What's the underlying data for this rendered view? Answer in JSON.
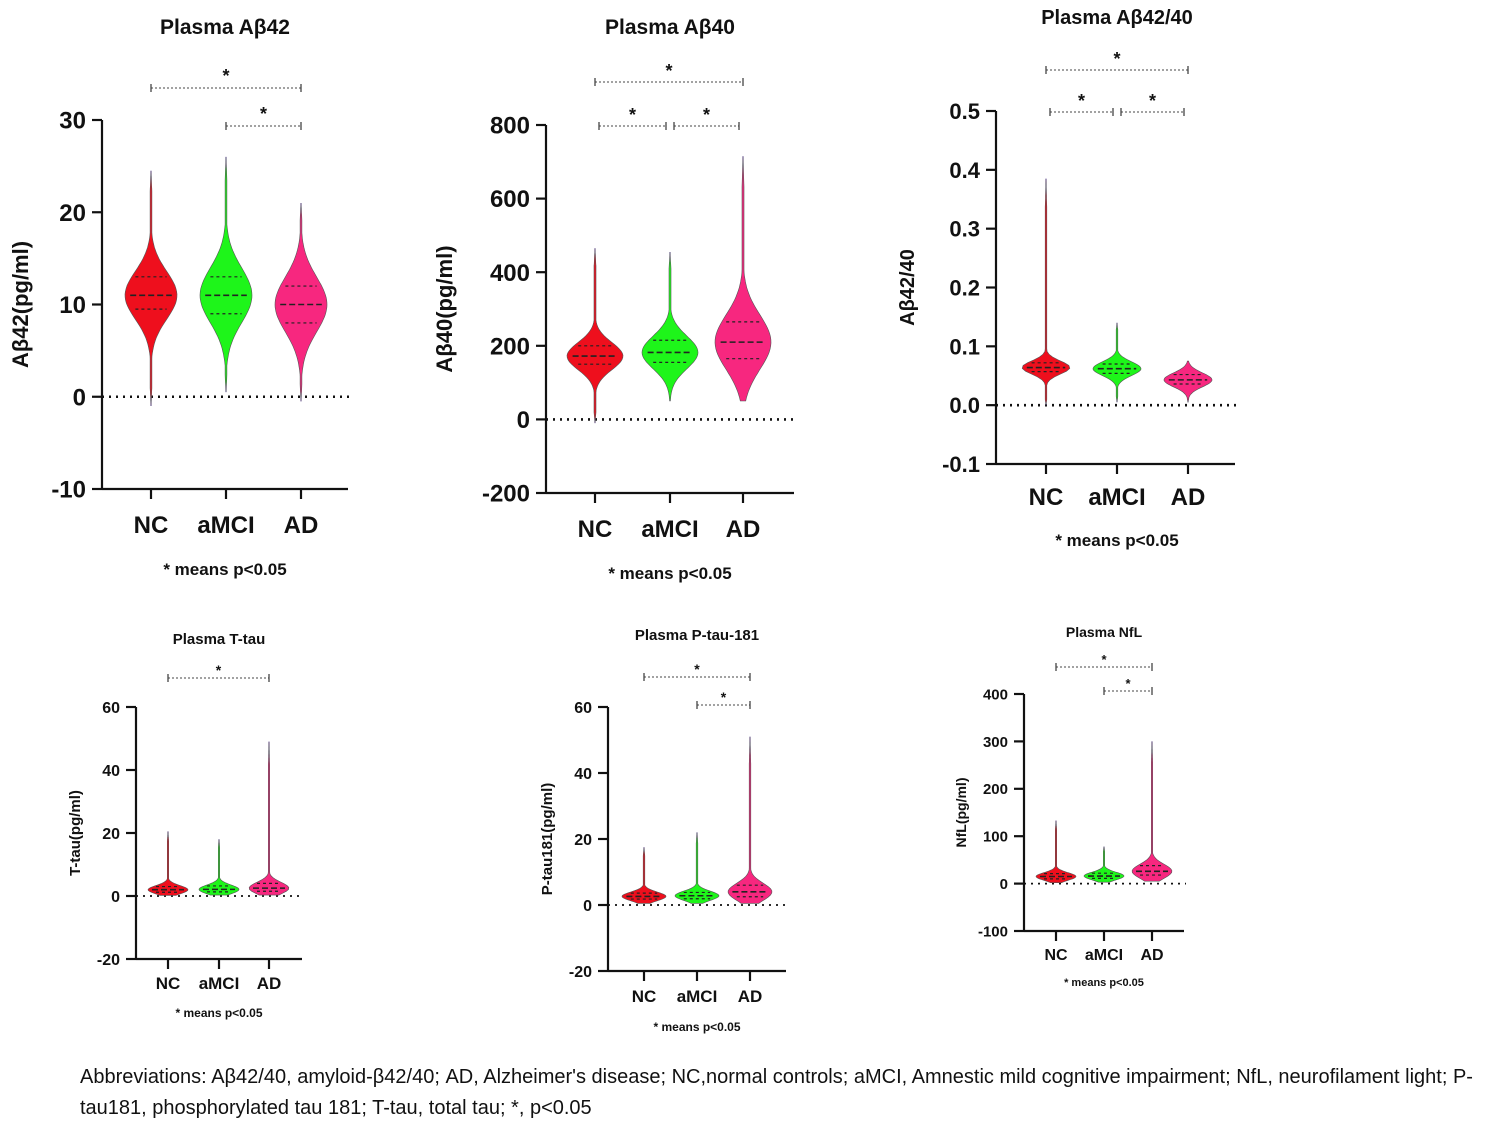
{
  "footnote": "Abbreviations: Aβ42/40, amyloid-β42/40; AD, Alzheimer's disease; NC,normal controls; aMCI, Amnestic mild cognitive impairment; NfL, neurofilament light; P-tau181, phosphorylated tau 181; T-tau, total tau; *, p<0.05",
  "colors": {
    "NC": "#ee0f1d",
    "aMCI": "#1ef51a",
    "AD": "#f7277f"
  },
  "chart_data": [
    {
      "type": "violin",
      "title": "Plasma Aβ42",
      "ylabel": "Aβ42(pg/ml)",
      "note": "* means p<0.05",
      "categories": [
        "NC",
        "aMCI",
        "AD"
      ],
      "ylim": [
        -10,
        30
      ],
      "yticks": [
        -10,
        0,
        10,
        20,
        30
      ],
      "series": [
        {
          "category": "NC",
          "min": -1,
          "q1": 9.5,
          "median": 11,
          "q3": 13,
          "max": 24.5
        },
        {
          "category": "aMCI",
          "min": 0.5,
          "q1": 9,
          "median": 11,
          "q3": 13,
          "max": 26
        },
        {
          "category": "AD",
          "min": -0.5,
          "q1": 8,
          "median": 10,
          "q3": 12,
          "max": 21
        }
      ],
      "significance": [
        {
          "from": "NC",
          "to": "AD",
          "label": "*"
        },
        {
          "from": "aMCI",
          "to": "AD",
          "label": "*"
        }
      ]
    },
    {
      "type": "violin",
      "title": "Plasma Aβ40",
      "ylabel": "Aβ40(pg/ml)",
      "note": "* means p<0.05",
      "categories": [
        "NC",
        "aMCI",
        "AD"
      ],
      "ylim": [
        -200,
        800
      ],
      "yticks": [
        -200,
        0,
        200,
        400,
        600,
        800
      ],
      "series": [
        {
          "category": "NC",
          "min": -10,
          "q1": 150,
          "median": 172,
          "q3": 200,
          "max": 465
        },
        {
          "category": "aMCI",
          "min": 50,
          "q1": 155,
          "median": 182,
          "q3": 215,
          "max": 455
        },
        {
          "category": "AD",
          "min": 50,
          "q1": 165,
          "median": 210,
          "q3": 265,
          "max": 715
        }
      ],
      "significance": [
        {
          "from": "NC",
          "to": "AD",
          "label": "*"
        },
        {
          "from": "NC",
          "to": "aMCI",
          "label": "*"
        },
        {
          "from": "aMCI",
          "to": "AD",
          "label": "*"
        }
      ]
    },
    {
      "type": "violin",
      "title": "Plasma Aβ42/40",
      "ylabel": "Aβ42/40",
      "note": "* means p<0.05",
      "categories": [
        "NC",
        "aMCI",
        "AD"
      ],
      "ylim": [
        -0.1,
        0.5
      ],
      "yticks": [
        -0.1,
        0.0,
        0.1,
        0.2,
        0.3,
        0.4,
        0.5
      ],
      "series": [
        {
          "category": "NC",
          "min": 0.0,
          "q1": 0.057,
          "median": 0.064,
          "q3": 0.072,
          "max": 0.385
        },
        {
          "category": "aMCI",
          "min": 0.005,
          "q1": 0.054,
          "median": 0.062,
          "q3": 0.07,
          "max": 0.14
        },
        {
          "category": "AD",
          "min": 0.005,
          "q1": 0.036,
          "median": 0.043,
          "q3": 0.052,
          "max": 0.075
        }
      ],
      "significance": [
        {
          "from": "NC",
          "to": "AD",
          "label": "*"
        },
        {
          "from": "NC",
          "to": "aMCI",
          "label": "*"
        },
        {
          "from": "aMCI",
          "to": "AD",
          "label": "*"
        }
      ]
    },
    {
      "type": "violin",
      "title": "Plasma T-tau",
      "ylabel": "T-tau(pg/ml)",
      "note": "* means p<0.05",
      "categories": [
        "NC",
        "aMCI",
        "AD"
      ],
      "ylim": [
        -20,
        60
      ],
      "yticks": [
        -20,
        0,
        20,
        40,
        60
      ],
      "series": [
        {
          "category": "NC",
          "min": 0.2,
          "q1": 1.2,
          "median": 2,
          "q3": 3,
          "max": 20.5
        },
        {
          "category": "aMCI",
          "min": 0.3,
          "q1": 1.3,
          "median": 2.1,
          "q3": 3.2,
          "max": 18
        },
        {
          "category": "AD",
          "min": 0.3,
          "q1": 1.5,
          "median": 2.5,
          "q3": 4,
          "max": 49
        }
      ],
      "significance": [
        {
          "from": "NC",
          "to": "AD",
          "label": "*"
        }
      ]
    },
    {
      "type": "violin",
      "title": "Plasma P-tau-181",
      "ylabel": "P-tau181(pg/ml)",
      "note": "* means p<0.05",
      "categories": [
        "NC",
        "aMCI",
        "AD"
      ],
      "ylim": [
        -20,
        60
      ],
      "yticks": [
        -20,
        0,
        20,
        40,
        60
      ],
      "series": [
        {
          "category": "NC",
          "min": 0.5,
          "q1": 1.8,
          "median": 2.6,
          "q3": 3.6,
          "max": 17.5
        },
        {
          "category": "aMCI",
          "min": 0.5,
          "q1": 1.9,
          "median": 2.8,
          "q3": 3.8,
          "max": 22
        },
        {
          "category": "AD",
          "min": 0.5,
          "q1": 2.5,
          "median": 4,
          "q3": 6,
          "max": 51
        }
      ],
      "significance": [
        {
          "from": "NC",
          "to": "AD",
          "label": "*"
        },
        {
          "from": "aMCI",
          "to": "AD",
          "label": "*"
        }
      ]
    },
    {
      "type": "violin",
      "title": "Plasma NfL",
      "ylabel": "NfL(pg/ml)",
      "note": "* means p<0.05",
      "categories": [
        "NC",
        "aMCI",
        "AD"
      ],
      "ylim": [
        -100,
        400
      ],
      "yticks": [
        -100,
        0,
        100,
        200,
        300,
        400
      ],
      "series": [
        {
          "category": "NC",
          "min": 2,
          "q1": 10,
          "median": 15,
          "q3": 21,
          "max": 133
        },
        {
          "category": "aMCI",
          "min": 3,
          "q1": 11,
          "median": 16,
          "q3": 22,
          "max": 78
        },
        {
          "category": "AD",
          "min": 5,
          "q1": 18,
          "median": 26,
          "q3": 38,
          "max": 300
        }
      ],
      "significance": [
        {
          "from": "NC",
          "to": "AD",
          "label": "*"
        },
        {
          "from": "aMCI",
          "to": "AD",
          "label": "*"
        }
      ]
    }
  ]
}
